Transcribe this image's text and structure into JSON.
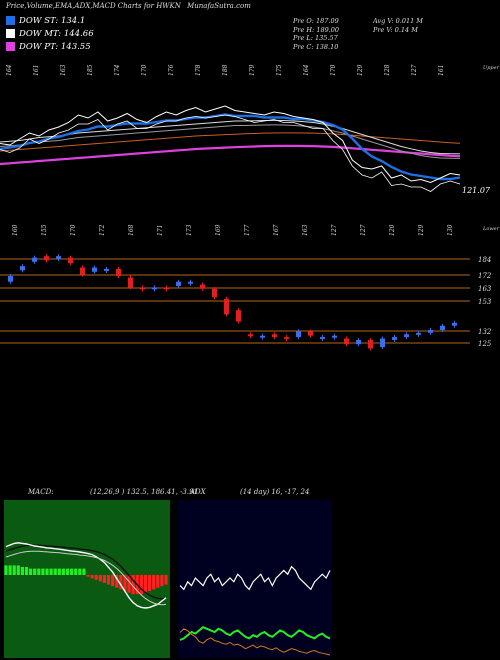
{
  "header": {
    "title": "Price,Volume,EMA,ADX,MACD Charts for HWKN",
    "site": "MunafaSutra.com"
  },
  "legend": [
    {
      "label": "DOW ST",
      "value": "134.1",
      "color": "#1e6ee6"
    },
    {
      "label": "DOW MT",
      "value": "144.66",
      "color": "#ffffff"
    },
    {
      "label": "DOW PT",
      "value": "143.55",
      "color": "#e040e0"
    }
  ],
  "stats": {
    "col1": [
      "Pre   O: 187.09",
      "Pre   H: 189.00",
      "Pre   L: 135.57",
      "Pre   C: 138.10"
    ],
    "col2": [
      "Avg V: 0.011 M",
      "Pre   V: 0.14   M"
    ]
  },
  "ema_panel": {
    "top_labels": [
      "164",
      "161",
      "163",
      "185",
      "174",
      "170",
      "176",
      "178",
      "188",
      "179",
      "175",
      "164",
      "170",
      "129",
      "128",
      "127",
      "161"
    ],
    "bottom_labels": [
      "160",
      "155",
      "170",
      "172",
      "168",
      "171",
      "173",
      "169",
      "177",
      "167",
      "163",
      "127",
      "127",
      "120",
      "129",
      "130"
    ],
    "top_right_word": "Upper",
    "bottom_right_word": "Lower",
    "last_value": "121.07"
  },
  "price_panel": {
    "levels": [
      "184",
      "172",
      "163",
      "153",
      "132",
      "125"
    ]
  },
  "macd_panel": {
    "label": "MACD:",
    "params": "(12,26,9 ) 132.5,  186.41, -3.91"
  },
  "adx_panel": {
    "label": "ADX",
    "params": "(14  day) 16, -17,  24"
  },
  "chart_data": {
    "type": "line",
    "ema_panel": {
      "close": [
        151,
        150,
        154,
        158,
        156,
        160,
        162,
        165,
        170,
        168,
        172,
        166,
        168,
        171,
        167,
        165,
        169,
        172,
        170,
        173,
        175,
        172,
        174,
        176,
        173,
        172,
        171,
        170,
        172,
        171,
        169,
        168,
        167,
        165,
        158,
        153,
        140,
        135,
        134,
        136,
        128,
        130,
        126,
        127,
        125,
        128,
        131,
        130
      ],
      "ema_short": [
        150,
        151,
        152,
        154,
        155,
        157,
        158,
        160,
        162,
        163,
        165,
        165,
        166,
        167,
        167,
        167,
        168,
        169,
        169,
        170,
        171,
        171,
        172,
        173,
        172,
        172,
        172,
        171,
        171,
        171,
        170,
        170,
        169,
        168,
        166,
        163,
        157,
        150,
        145,
        142,
        138,
        135,
        133,
        132,
        131,
        130,
        130,
        131
      ],
      "ema_mid": [
        152,
        152.5,
        153,
        154,
        155,
        155.5,
        156,
        157,
        158,
        158.5,
        159,
        159.5,
        160,
        160.5,
        161,
        161.5,
        162,
        162.5,
        163,
        163.5,
        164,
        164.5,
        165,
        165.5,
        166,
        166,
        166.2,
        166.3,
        166.4,
        166.3,
        166,
        165.6,
        165,
        164,
        162.5,
        161,
        159,
        157,
        155,
        153,
        151,
        149,
        147.5,
        146,
        145,
        144.3,
        144.2,
        144.1
      ],
      "ema_long": [
        140,
        140.5,
        141,
        141.5,
        142,
        142.5,
        143,
        143.5,
        144,
        144.5,
        145,
        145.5,
        146,
        146.5,
        147,
        147.5,
        148,
        148.5,
        149,
        149.5,
        150,
        150.3,
        150.6,
        150.9,
        151.2,
        151.5,
        151.7,
        151.9,
        152,
        152.1,
        152.1,
        152,
        151.9,
        151.7,
        151.4,
        151,
        150.5,
        150,
        149.5,
        149,
        148.5,
        148,
        147.5,
        147,
        146.5,
        146,
        145.5,
        145.2
      ]
    },
    "price_panel": {
      "candles": [
        {
          "o": 168,
          "c": 172
        },
        {
          "o": 176,
          "c": 179
        },
        {
          "o": 182,
          "c": 185
        },
        {
          "o": 186,
          "c": 183
        },
        {
          "o": 184,
          "c": 186
        },
        {
          "o": 185,
          "c": 181
        },
        {
          "o": 178,
          "c": 173
        },
        {
          "o": 175,
          "c": 178
        },
        {
          "o": 176,
          "c": 177
        },
        {
          "o": 177,
          "c": 172
        },
        {
          "o": 171,
          "c": 164
        },
        {
          "o": 164,
          "c": 163
        },
        {
          "o": 163,
          "c": 164
        },
        {
          "o": 164,
          "c": 163
        },
        {
          "o": 165,
          "c": 168
        },
        {
          "o": 168,
          "c": 168
        },
        {
          "o": 166,
          "c": 163
        },
        {
          "o": 163,
          "c": 157
        },
        {
          "o": 156,
          "c": 145
        },
        {
          "o": 148,
          "c": 140
        },
        {
          "o": 131,
          "c": 130
        },
        {
          "o": 130,
          "c": 130
        },
        {
          "o": 131,
          "c": 129
        },
        {
          "o": 129,
          "c": 128
        },
        {
          "o": 129,
          "c": 133
        },
        {
          "o": 133,
          "c": 130
        },
        {
          "o": 128,
          "c": 129
        },
        {
          "o": 129,
          "c": 130
        },
        {
          "o": 128,
          "c": 124
        },
        {
          "o": 124,
          "c": 127
        },
        {
          "o": 127,
          "c": 121
        },
        {
          "o": 122,
          "c": 128
        },
        {
          "o": 127,
          "c": 129
        },
        {
          "o": 129,
          "c": 131
        },
        {
          "o": 131,
          "c": 132
        },
        {
          "o": 132,
          "c": 134
        },
        {
          "o": 134,
          "c": 137
        },
        {
          "o": 137,
          "c": 139
        }
      ]
    },
    "macd_panel": {
      "macd": [
        7,
        7.5,
        8,
        8.2,
        8,
        7.8,
        7.5,
        7.2,
        7,
        6.8,
        6.6,
        6.5,
        6.3,
        6.2,
        6,
        5.8,
        5.6,
        5.5,
        5.3,
        5.1,
        4.8,
        4.5,
        3.8,
        3,
        2,
        0.5,
        -1,
        -3,
        -5,
        -7,
        -9,
        -10.5,
        -11.5,
        -12,
        -12.2,
        -12,
        -11.5,
        -11,
        -10,
        -9
      ],
      "signal": [
        5,
        5.4,
        5.8,
        6.2,
        6.5,
        6.7,
        6.8,
        6.8,
        6.8,
        6.7,
        6.6,
        6.5,
        6.4,
        6.3,
        6.2,
        6,
        5.9,
        5.8,
        5.6,
        5.5,
        5.3,
        5.1,
        4.8,
        4.4,
        3.9,
        3.2,
        2.4,
        1.4,
        0.2,
        -1.2,
        -2.7,
        -4.2,
        -5.6,
        -6.9,
        -8,
        -8.8,
        -9.4,
        -9.8,
        -9.9,
        -9.8
      ],
      "hist": [
        3,
        3,
        3,
        3,
        2.5,
        2.5,
        2,
        2,
        2,
        2,
        2,
        2,
        2,
        2,
        2,
        2,
        2,
        2,
        2,
        2,
        -0.5,
        -1,
        -1.5,
        -2,
        -2.5,
        -3,
        -3.5,
        -4,
        -4.5,
        -5,
        -5.5,
        -6,
        -6,
        -6,
        -5.5,
        -5,
        -4.5,
        -4,
        -3.5,
        -3
      ]
    },
    "adx_panel": {
      "di_plus": [
        28,
        27,
        29,
        28,
        30,
        29,
        28,
        30,
        31,
        29,
        30,
        28,
        29,
        30,
        29,
        31,
        30,
        28,
        27,
        29,
        30,
        31,
        29,
        30,
        28,
        30,
        31,
        32,
        31,
        33,
        32,
        30,
        29,
        28,
        27,
        29,
        30,
        31,
        30,
        32
      ],
      "di_minus": [
        10,
        11,
        13,
        15,
        14,
        16,
        18,
        17,
        16,
        15,
        17,
        16,
        14,
        13,
        15,
        16,
        14,
        12,
        11,
        13,
        12,
        14,
        15,
        13,
        12,
        14,
        16,
        15,
        13,
        12,
        14,
        16,
        15,
        13,
        12,
        11,
        13,
        14,
        12,
        11
      ],
      "adx": [
        40,
        44,
        42,
        38,
        35,
        30,
        28,
        32,
        34,
        31,
        30,
        28,
        27,
        29,
        26,
        27,
        25,
        22,
        24,
        26,
        23,
        25,
        24,
        22,
        21,
        23,
        20,
        18,
        20,
        22,
        21,
        19,
        18,
        17,
        19,
        20,
        18,
        17,
        16,
        15
      ]
    }
  }
}
